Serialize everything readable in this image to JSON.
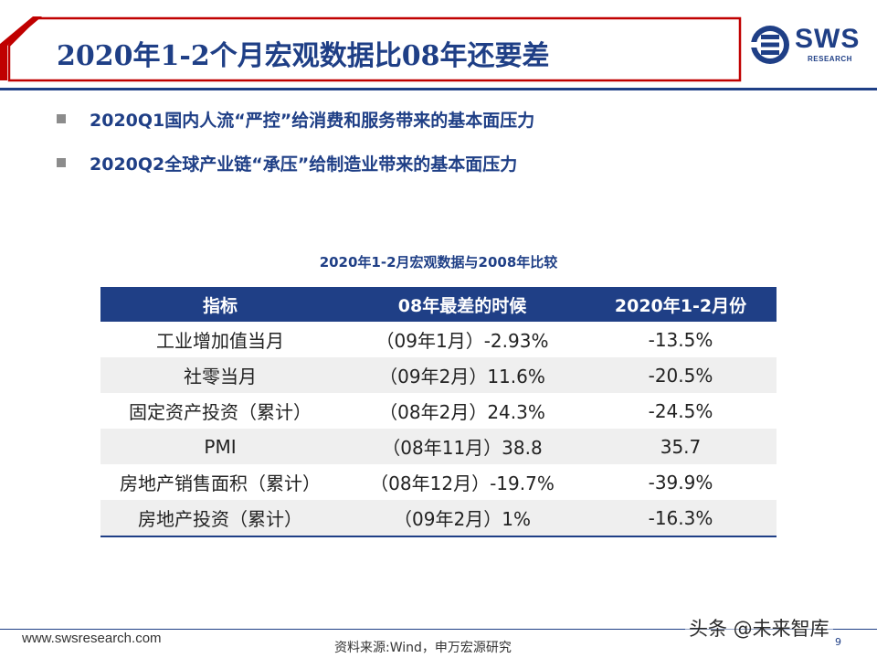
{
  "header": {
    "title": "2020年1-2个月宏观数据比08年还要差",
    "logo_text": "SWS",
    "logo_sub": "RESEARCH",
    "accent_color": "#1f3f86",
    "bar_red": "#c00000"
  },
  "bullets": [
    {
      "text": "2020Q1国内人流“严控”给消费和服务带来的基本面压力"
    },
    {
      "text": "2020Q2全球产业链“承压”给制造业带来的基本面压力"
    }
  ],
  "table": {
    "title": "2020年1-2月宏观数据与2008年比较",
    "headers": [
      "指标",
      "08年最差的时候",
      "2020年1-2月份"
    ],
    "rows": [
      [
        "工业增加值当月",
        "（09年1月）-2.93%",
        "-13.5%"
      ],
      [
        "社零当月",
        "（09年2月）11.6%",
        "-20.5%"
      ],
      [
        "固定资产投资（累计）",
        "（08年2月）24.3%",
        "-24.5%"
      ],
      [
        "PMI",
        "（08年11月）38.8",
        "35.7"
      ],
      [
        "房地产销售面积（累计）",
        "（08年12月）-19.7%",
        "-39.9%"
      ],
      [
        "房地产投资（累计）",
        "（09年2月）1%",
        "-16.3%"
      ]
    ]
  },
  "footer": {
    "website": "www.swsresearch.com",
    "source": "资料来源:Wind，申万宏源研究",
    "page_number": "9",
    "watermark": "头条 @未来智库"
  }
}
